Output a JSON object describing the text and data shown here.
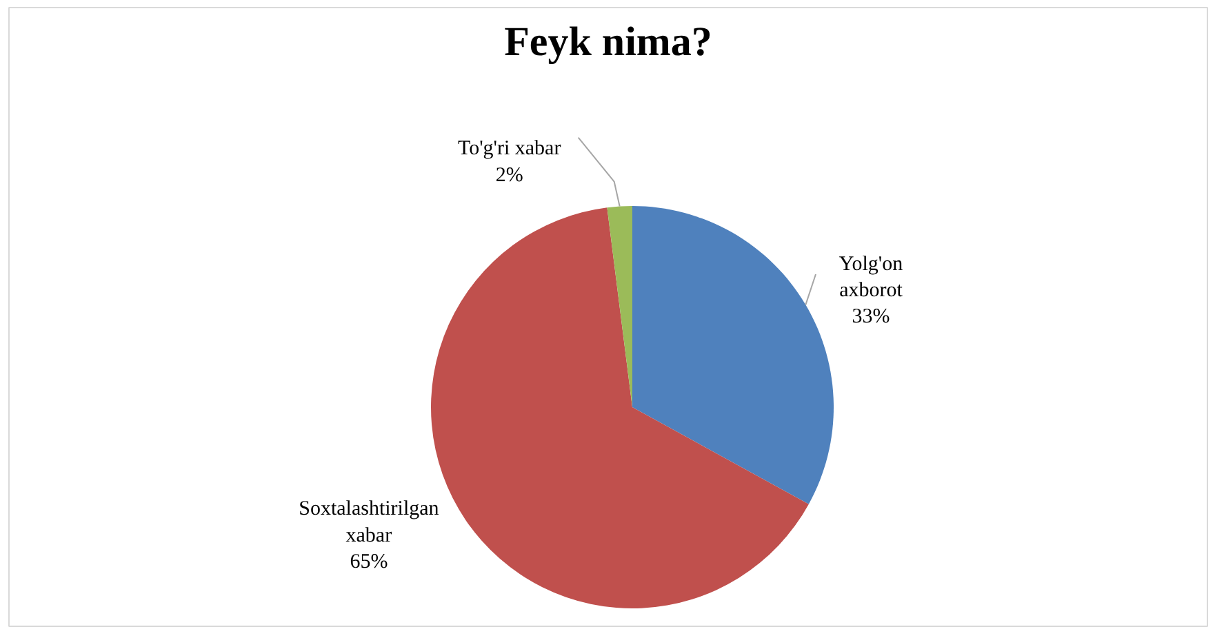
{
  "chart_data": {
    "type": "pie",
    "title": "Feyk nima?",
    "categories": [
      "Yolg'on axborot",
      "Soxtalashtirilgan xabar",
      "To'g'ri xabar"
    ],
    "values": [
      33,
      65,
      2
    ],
    "colors": [
      "#4f81bd",
      "#c0504d",
      "#9bbb59"
    ],
    "value_labels": [
      "33%",
      "65%",
      "2%"
    ]
  }
}
